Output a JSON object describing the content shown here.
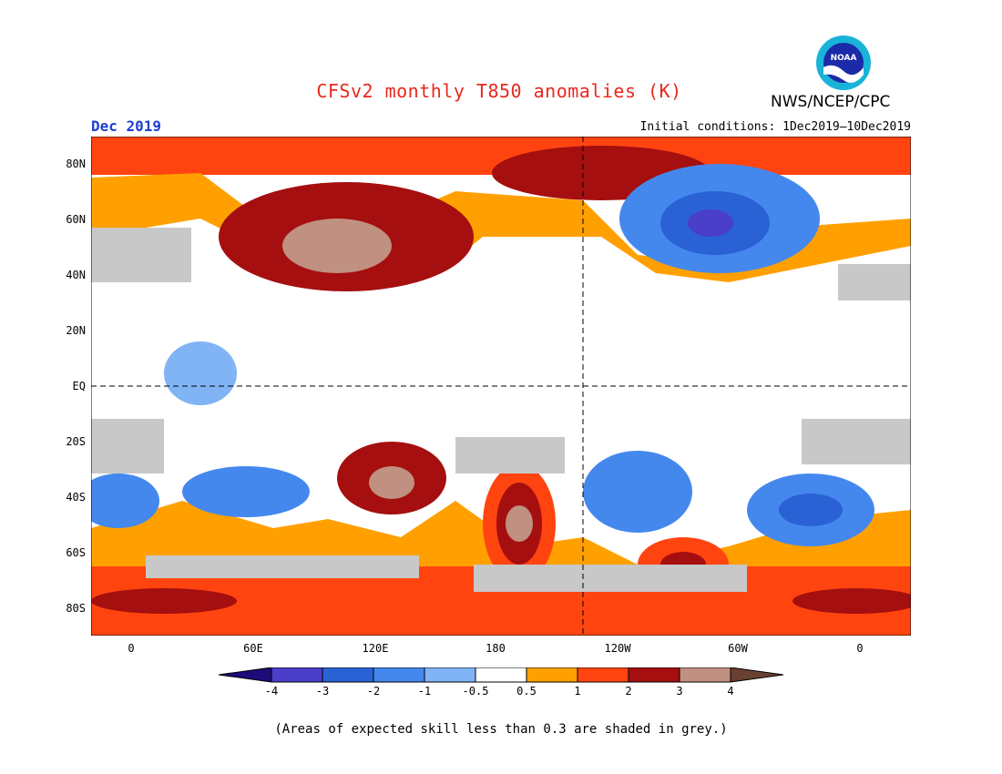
{
  "title": "CFSv2 monthly T850 anomalies (K)",
  "agency": "NWS/NCEP/CPC",
  "logo_text": "NOAA",
  "month_label": "Dec 2019",
  "initial_conditions": "Initial conditions: 1Dec2019—10Dec2019",
  "lat_labels": [
    "80N",
    "60N",
    "40N",
    "20N",
    "EQ",
    "20S",
    "40S",
    "60S",
    "80S"
  ],
  "lon_labels": [
    "0",
    "60E",
    "120E",
    "180",
    "120W",
    "60W",
    "0"
  ],
  "colorbar": {
    "ticks": [
      "-4",
      "-3",
      "-2",
      "-1",
      "-0.5",
      "0.5",
      "1",
      "2",
      "3",
      "4"
    ],
    "colors": [
      "#1d0b7a",
      "#4b3ec8",
      "#2a62d6",
      "#4488ee",
      "#80b4f4",
      "#ffffff",
      "#ffa000",
      "#ff4410",
      "#a50f0f",
      "#c09080",
      "#6a4030"
    ]
  },
  "grey_color": "#c8c8c8",
  "footnote": "(Areas of expected skill less than 0.3 are shaded in grey.)"
}
